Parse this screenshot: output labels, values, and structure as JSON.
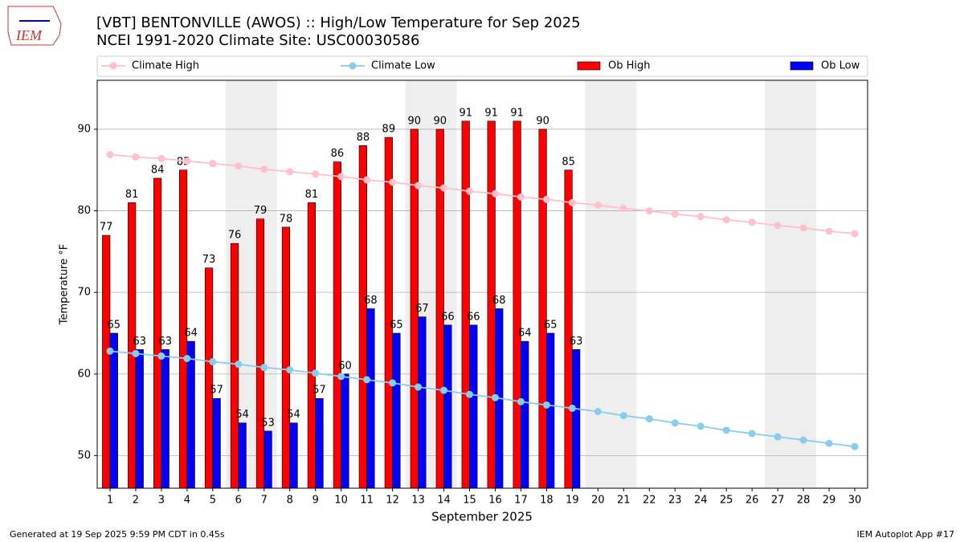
{
  "chart_data": {
    "type": "bar",
    "title": "[VBT] BENTONVILLE (AWOS) :: High/Low Temperature for Sep 2025",
    "subtitle": "NCEI 1991-2020 Climate Site: USC00030586",
    "xlabel": "September 2025",
    "ylabel": "Temperature °F",
    "x": [
      1,
      2,
      3,
      4,
      5,
      6,
      7,
      8,
      9,
      10,
      11,
      12,
      13,
      14,
      15,
      16,
      17,
      18,
      19,
      20,
      21,
      22,
      23,
      24,
      25,
      26,
      27,
      28,
      29,
      30
    ],
    "xlim": [
      0.5,
      30.5
    ],
    "xticks": [
      1,
      2,
      3,
      4,
      5,
      6,
      7,
      8,
      9,
      10,
      11,
      12,
      13,
      14,
      15,
      16,
      17,
      18,
      19,
      20,
      21,
      22,
      23,
      24,
      25,
      26,
      27,
      28,
      29,
      30
    ],
    "ylim": [
      46,
      96
    ],
    "yticks": [
      50,
      60,
      70,
      80,
      90
    ],
    "grid": true,
    "shaded_ranges": [
      [
        5.5,
        7.5
      ],
      [
        12.5,
        14.5
      ],
      [
        19.5,
        21.5
      ],
      [
        26.5,
        28.5
      ]
    ],
    "shade_color": "#eeeeee",
    "series": [
      {
        "name": "Climate High",
        "type": "line",
        "color": "#ffc0cb",
        "values": [
          86.9,
          86.6,
          86.4,
          86.1,
          85.8,
          85.5,
          85.1,
          84.8,
          84.5,
          84.2,
          83.8,
          83.5,
          83.1,
          82.8,
          82.4,
          82.1,
          81.7,
          81.4,
          81.0,
          80.7,
          80.3,
          80.0,
          79.6,
          79.3,
          78.9,
          78.6,
          78.2,
          77.9,
          77.5,
          77.2
        ]
      },
      {
        "name": "Climate Low",
        "type": "line",
        "color": "#87ceeb",
        "values": [
          62.8,
          62.5,
          62.2,
          61.9,
          61.5,
          61.2,
          60.8,
          60.5,
          60.1,
          59.7,
          59.3,
          58.9,
          58.4,
          58.0,
          57.5,
          57.1,
          56.6,
          56.2,
          55.8,
          55.4,
          54.9,
          54.5,
          54.0,
          53.6,
          53.1,
          52.7,
          52.3,
          51.9,
          51.5,
          51.1
        ]
      },
      {
        "name": "Ob High",
        "type": "bar",
        "color": "#ff0000",
        "values": [
          77,
          81,
          84,
          85,
          73,
          76,
          79,
          78,
          81,
          86,
          88,
          89,
          90,
          90,
          91,
          91,
          91,
          90,
          85,
          null,
          null,
          null,
          null,
          null,
          null,
          null,
          null,
          null,
          null,
          null
        ]
      },
      {
        "name": "Ob Low",
        "type": "bar",
        "color": "#0000ff",
        "values": [
          65,
          63,
          63,
          64,
          57,
          54,
          53,
          54,
          57,
          60,
          68,
          65,
          67,
          66,
          66,
          68,
          64,
          65,
          63,
          null,
          null,
          null,
          null,
          null,
          null,
          null,
          null,
          null,
          null,
          null
        ]
      }
    ]
  },
  "logo": "IEM",
  "footer": {
    "left": "Generated at 19 Sep 2025 9:59 PM CDT in 0.45s",
    "right": "IEM Autoplot App #17"
  }
}
